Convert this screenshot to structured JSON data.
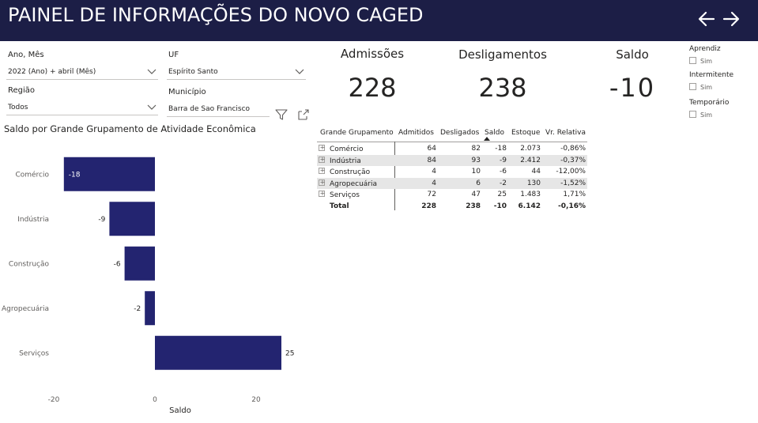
{
  "header": {
    "title": "PAINEL DE INFORMAÇÕES DO NOVO CAGED",
    "back_icon": "arrow-left-icon",
    "forward_icon": "arrow-right-icon"
  },
  "filters": {
    "ano_mes": {
      "label": "Ano, Mês",
      "value": "2022 (Ano) + abril (Mês)"
    },
    "uf": {
      "label": "UF",
      "value": "Espírito Santo"
    },
    "regiao": {
      "label": "Região",
      "value": "Todos"
    },
    "municipio": {
      "label": "Município",
      "value": "Barra de Sao Francisco"
    }
  },
  "cards": {
    "admissoes": {
      "title": "Admissões",
      "value": "228"
    },
    "desligamentos": {
      "title": "Desligamentos",
      "value": "238"
    },
    "saldo": {
      "title": "Saldo",
      "value": "-10"
    }
  },
  "slicers": [
    {
      "title": "Aprendiz",
      "option": "Sim"
    },
    {
      "title": "Intermitente",
      "option": "Sim"
    },
    {
      "title": "Temporário",
      "option": "Sim"
    }
  ],
  "table": {
    "columns": [
      "Grande Grupamento",
      "Admitidos",
      "Desligados",
      "Saldo",
      "Estoque",
      "Vr. Relativa"
    ],
    "rows": [
      {
        "grupo": "Comércio",
        "admitidos": "64",
        "desligados": "82",
        "saldo": "-18",
        "estoque": "2.073",
        "vr": "-0,86%"
      },
      {
        "grupo": "Indústria",
        "admitidos": "84",
        "desligados": "93",
        "saldo": "-9",
        "estoque": "2.412",
        "vr": "-0,37%"
      },
      {
        "grupo": "Construção",
        "admitidos": "4",
        "desligados": "10",
        "saldo": "-6",
        "estoque": "44",
        "vr": "-12,00%"
      },
      {
        "grupo": "Agropecuária",
        "admitidos": "4",
        "desligados": "6",
        "saldo": "-2",
        "estoque": "130",
        "vr": "-1,52%"
      },
      {
        "grupo": "Serviços",
        "admitidos": "72",
        "desligados": "47",
        "saldo": "25",
        "estoque": "1.483",
        "vr": "1,71%"
      }
    ],
    "total": {
      "grupo": "Total",
      "admitidos": "228",
      "desligados": "238",
      "saldo": "-10",
      "estoque": "6.142",
      "vr": "-0,16%"
    }
  },
  "chart_data": {
    "type": "bar",
    "orientation": "horizontal",
    "title": "Saldo por Grande Grupamento de Atividade Econômica",
    "categories": [
      "Comércio",
      "Indústria",
      "Construção",
      "Agropecuária",
      "Serviços"
    ],
    "values": [
      -18,
      -9,
      -6,
      -2,
      25
    ],
    "xlabel": "Saldo",
    "ylabel": "",
    "xlim": [
      -20,
      25
    ],
    "xticks": [
      -20,
      0,
      20
    ],
    "bar_color": "#232470",
    "grid": false
  },
  "colors": {
    "header_bg": "#1c1e46",
    "bar": "#232470",
    "row_shade": "#e6e6e6"
  }
}
